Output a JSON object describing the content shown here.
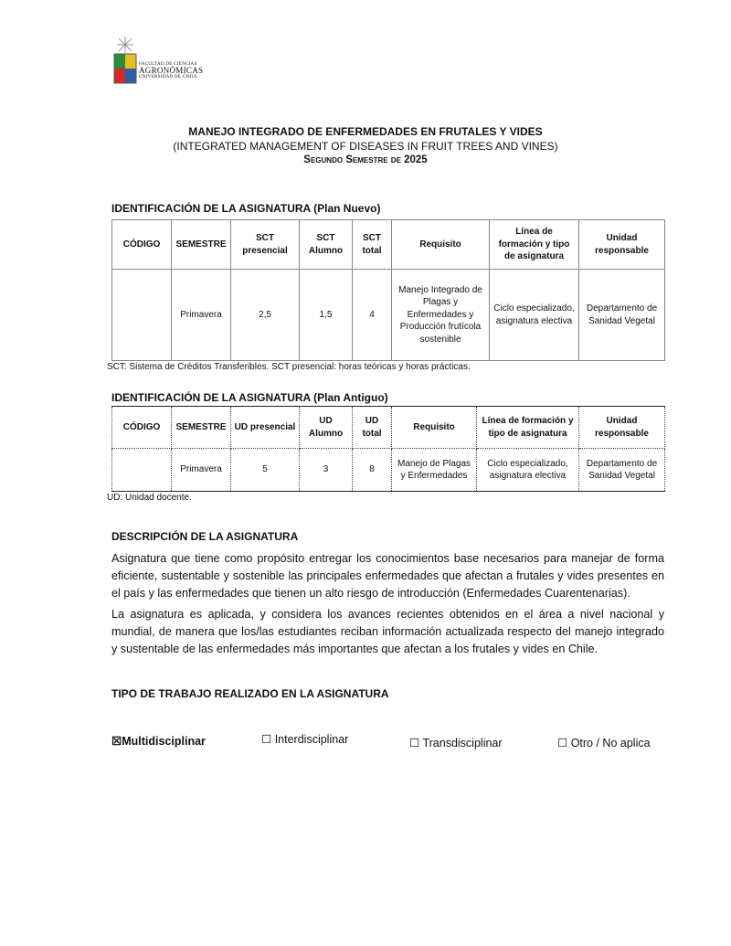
{
  "header": {
    "logo_line1": "FACULTAD DE CIENCIAS",
    "logo_line2": "AGRONÓMICAS",
    "logo_line3": "UNIVERSIDAD DE CHILE"
  },
  "title": "MANEJO INTEGRADO DE ENFERMEDADES EN FRUTALES Y VIDES",
  "subtitle": "(INTEGRATED MANAGEMENT OF DISEASES IN FRUIT TREES AND VINES)",
  "semester": "Segundo Semestre de 2025",
  "plan_nuevo": {
    "heading": "IDENTIFICACIÓN DE LA ASIGNATURA (Plan Nuevo)",
    "headers": [
      "CÓDIGO",
      "SEMESTRE",
      "SCT presencial",
      "SCT Alumno",
      "SCT total",
      "Requisito",
      "Línea de formación y tipo de asignatura",
      "Unidad responsable"
    ],
    "row": [
      "",
      "Primavera",
      "2,5",
      "1,5",
      "4",
      "Manejo Integrado de Plagas y Enfermedades y Producción frutícola sostenible",
      "Ciclo especializado, asignatura electiva",
      "Departamento de Sanidad Vegetal"
    ],
    "note": "SCT: Sistema de Créditos Transferibles. SCT presencial: horas teóricas y horas prácticas."
  },
  "plan_antiguo": {
    "heading": "IDENTIFICACIÓN DE LA ASIGNATURA (Plan Antiguo)",
    "headers": [
      "CÓDIGO",
      "SEMESTRE",
      "UD presencial",
      "UD Alumno",
      "UD total",
      "Requisito",
      "Línea de formación y tipo de asignatura",
      "Unidad responsable"
    ],
    "row": [
      "",
      "Primavera",
      "5",
      "3",
      "8",
      "Manejo de Plagas y Enfermedades",
      "Ciclo especializado, asignatura electiva",
      "Departamento de Sanidad Vegetal"
    ],
    "note": "UD: Unidad docente."
  },
  "descripcion": {
    "heading": "DESCRIPCIÓN DE LA ASIGNATURA",
    "p1": "Asignatura que tiene como propósito entregar los conocimientos base necesarios para manejar de forma eficiente, sustentable y sostenible las principales enfermedades que afectan a frutales y vides presentes en el país y las enfermedades que tienen un alto riesgo de introducción (Enfermedades Cuarentenarias).",
    "p2": "La asignatura es aplicada, y considera los avances recientes obtenidos en el área a nivel nacional y mundial, de manera que los/las estudiantes reciban información actualizada respecto del manejo integrado y sustentable de las enfermedades más importantes que afectan a los frutales y vides en Chile."
  },
  "tipo": {
    "heading": "TIPO DE TRABAJO REALIZADO EN LA ASIGNATURA",
    "options": [
      {
        "box": "☒",
        "label": "Multidisciplinar",
        "checked": true
      },
      {
        "box": "☐",
        "label": "Interdisciplinar",
        "checked": false
      },
      {
        "box": "☐",
        "label": "Transdisciplinar",
        "checked": false
      },
      {
        "box": "☐",
        "label": "Otro / No aplica",
        "checked": false
      }
    ]
  }
}
